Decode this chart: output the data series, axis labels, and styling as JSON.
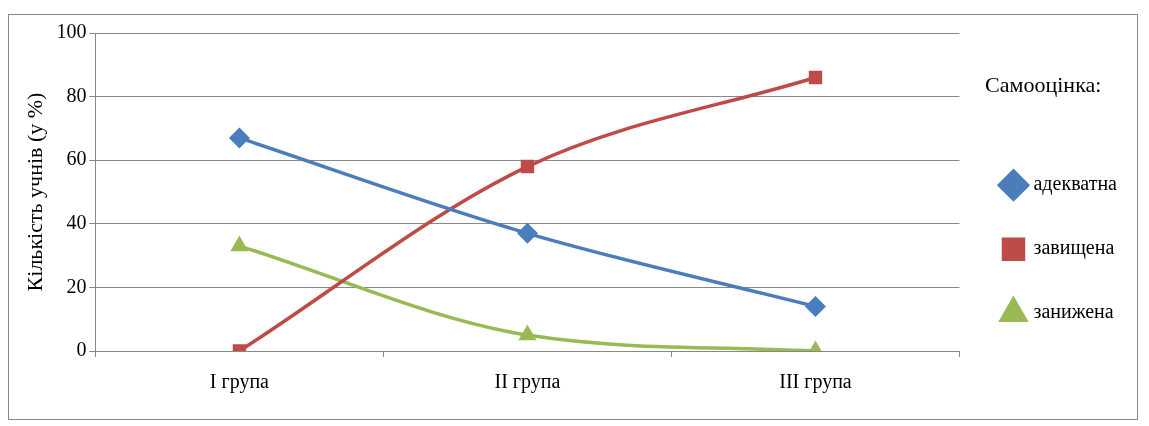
{
  "chart_data": {
    "type": "line",
    "ylabel": "Кількість учнів (у %)",
    "legend_title": "Самооцінка:",
    "categories": [
      "I група",
      "II група",
      "III група"
    ],
    "series": [
      {
        "name": "адекватна",
        "color": "#4a7ebb",
        "marker": "diamond",
        "values": [
          67,
          37,
          14
        ]
      },
      {
        "name": "завищена",
        "color": "#be4b48",
        "marker": "square",
        "values": [
          0,
          58,
          86
        ]
      },
      {
        "name": "занижена",
        "color": "#98b954",
        "marker": "triangle",
        "values": [
          33,
          5,
          0
        ]
      }
    ],
    "ylim": [
      0,
      100
    ],
    "yticks": [
      0,
      20,
      40,
      60,
      80,
      100
    ],
    "grid": "y",
    "legend": "right"
  }
}
